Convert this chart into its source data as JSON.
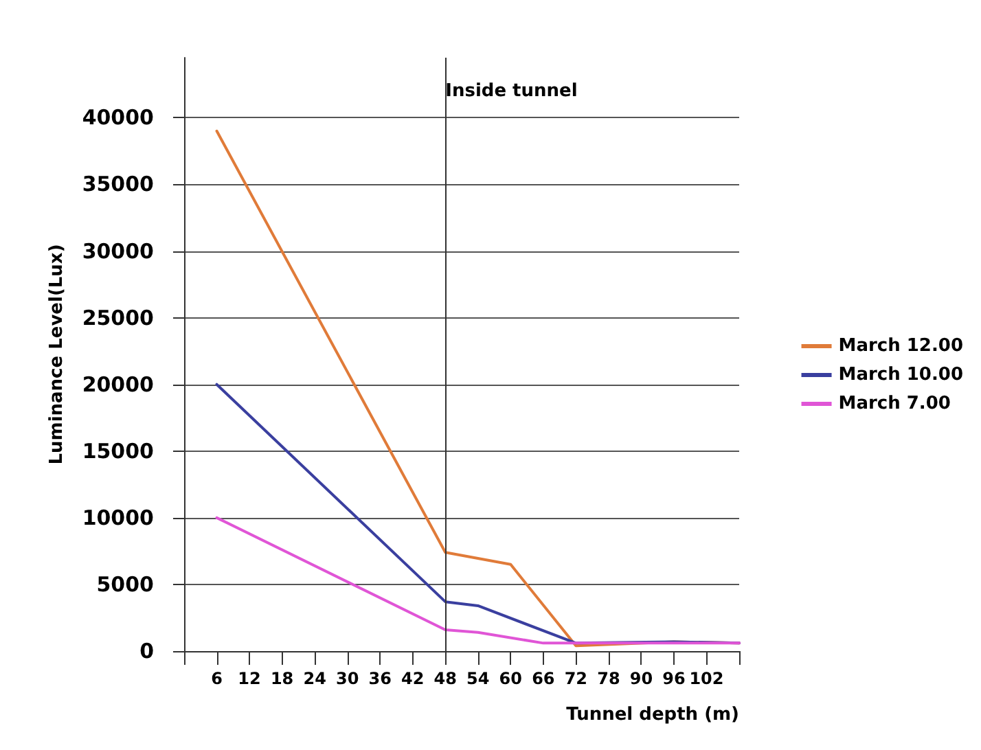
{
  "chart_data": {
    "type": "line",
    "xlabel": "Tunnel depth (m)",
    "ylabel": "Luminance Level(Lux)",
    "categories": [
      null,
      "6",
      "12",
      "18",
      "24",
      "30",
      "36",
      "42",
      "48",
      "54",
      "60",
      "66",
      "72",
      "78",
      "90",
      "96",
      "102",
      null
    ],
    "series": [
      {
        "name": "March 12.00",
        "color": "#e07b39",
        "values": [
          null,
          39000,
          null,
          null,
          null,
          null,
          null,
          null,
          7400,
          null,
          6500,
          null,
          400,
          null,
          null,
          700,
          null,
          600
        ]
      },
      {
        "name": "March 10.00",
        "color": "#3a3f9f",
        "values": [
          null,
          20000,
          null,
          null,
          null,
          null,
          null,
          null,
          3700,
          3400,
          null,
          null,
          600,
          null,
          null,
          700,
          null,
          600
        ]
      },
      {
        "name": "March 7.00",
        "color": "#e055d6",
        "values": [
          null,
          10000,
          null,
          null,
          null,
          null,
          null,
          null,
          1600,
          1400,
          null,
          600,
          null,
          null,
          null,
          600,
          null,
          600
        ]
      }
    ],
    "ylim": [
      0,
      44500
    ],
    "yticks": [
      0,
      5000,
      10000,
      15000,
      20000,
      25000,
      30000,
      35000,
      40000
    ],
    "ref_lines": [
      {
        "axis": "x",
        "value": "48",
        "label": "Inside tunnel",
        "color": "#333333"
      }
    ],
    "grid": "y",
    "legend": "right",
    "marker": "none",
    "line_style": "solid"
  }
}
